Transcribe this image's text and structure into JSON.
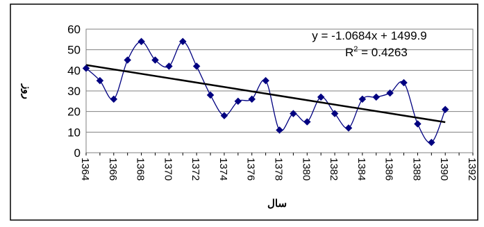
{
  "chart_data": {
    "type": "line",
    "title": "",
    "xlabel": "سال",
    "ylabel": "روز",
    "xlim": [
      1364,
      1392
    ],
    "ylim": [
      0,
      60
    ],
    "x_ticks": [
      "1364",
      "1366",
      "1368",
      "1370",
      "1372",
      "1374",
      "1376",
      "1378",
      "1380",
      "1382",
      "1384",
      "1386",
      "1388",
      "1390",
      "1392"
    ],
    "y_ticks": [
      "0",
      "10",
      "20",
      "30",
      "40",
      "50",
      "60"
    ],
    "grid": "horizontal",
    "legend": "none",
    "series": [
      {
        "x": [
          1364,
          1365,
          1366,
          1367,
          1368,
          1369,
          1370,
          1371,
          1372,
          1373,
          1374,
          1375,
          1376,
          1377,
          1378,
          1379,
          1380,
          1381,
          1382,
          1383,
          1384,
          1385,
          1386,
          1387,
          1388,
          1389,
          1390
        ],
        "values": [
          41,
          35,
          26,
          45,
          54,
          45,
          42,
          54,
          42,
          28,
          18,
          25,
          26,
          35,
          11,
          19,
          15,
          27,
          19,
          12,
          26,
          27,
          29,
          34,
          14,
          5,
          21
        ],
        "color": "#000080",
        "marker": "diamond",
        "smooth": true
      }
    ],
    "trendline": {
      "slope": -1.0684,
      "intercept": 1499.9,
      "color": "#000000",
      "equation_label": "y = -1.0684x + 1499.9",
      "r2_prefix": "R",
      "r2_superscript": "2",
      "r2_suffix": " = 0.4263"
    }
  }
}
